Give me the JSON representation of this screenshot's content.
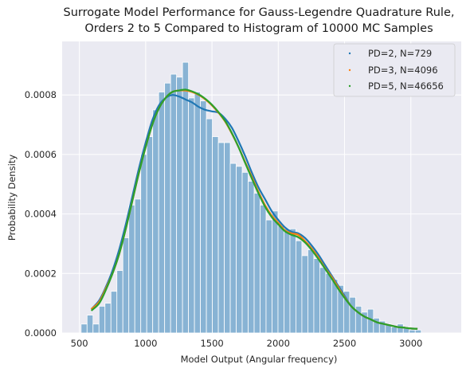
{
  "chart_data": {
    "type": "bar",
    "title_line1": "Surrogate Model Performance for Gauss-Legendre Quadrature Rule,",
    "title_line2": "Orders 2 to 5 Compared to Histogram of 10000 MC Samples",
    "xlabel": "Model Output (Angular frequency)",
    "ylabel": "Probability Density",
    "xlim": [
      370,
      3380
    ],
    "ylim": [
      0,
      0.00098
    ],
    "xticks": [
      500,
      1000,
      1500,
      2000,
      2500,
      3000
    ],
    "xtick_labels": [
      "500",
      "1000",
      "1500",
      "2000",
      "2500",
      "3000"
    ],
    "yticks": [
      0,
      0.0002,
      0.0004,
      0.0006,
      0.0008
    ],
    "ytick_labels": [
      "0.0000",
      "0.0002",
      "0.0004",
      "0.0006",
      "0.0008"
    ],
    "grid": true,
    "legend_position": "top-right",
    "colors": {
      "background": "#eaeaf2",
      "histogram": "#88b3d4",
      "series": [
        "#1f77b4",
        "#ff7f0e",
        "#2ca02c"
      ]
    },
    "histogram": {
      "bin_start": 513,
      "bin_width": 45,
      "densities": [
        3e-05,
        6e-05,
        3e-05,
        9e-05,
        0.0001,
        0.00014,
        0.00021,
        0.00032,
        0.00043,
        0.00045,
        0.0006,
        0.00066,
        0.00075,
        0.00081,
        0.00084,
        0.00087,
        0.00086,
        0.00091,
        0.00079,
        0.00081,
        0.00078,
        0.00072,
        0.00066,
        0.00064,
        0.00064,
        0.00057,
        0.00056,
        0.00054,
        0.00051,
        0.00047,
        0.00043,
        0.00038,
        0.00041,
        0.00036,
        0.00035,
        0.00035,
        0.00031,
        0.00026,
        0.00028,
        0.00025,
        0.00022,
        0.0002,
        0.00018,
        0.00016,
        0.00014,
        0.00012,
        9e-05,
        7e-05,
        8e-05,
        5e-05,
        4e-05,
        3e-05,
        2e-05,
        3e-05,
        2e-05,
        1e-05,
        1e-05
      ]
    },
    "series": [
      {
        "name": "PD=2, N=729",
        "x": [
          590,
          650,
          700,
          750,
          800,
          850,
          900,
          950,
          1000,
          1050,
          1100,
          1150,
          1200,
          1250,
          1300,
          1350,
          1400,
          1450,
          1500,
          1550,
          1600,
          1650,
          1700,
          1750,
          1800,
          1850,
          1900,
          1950,
          2000,
          2050,
          2100,
          2150,
          2200,
          2250,
          2300,
          2350,
          2400,
          2450,
          2500,
          2550,
          2600,
          2650,
          2700,
          2750,
          2800,
          2850,
          2900,
          2950,
          3000,
          3050
        ],
        "y": [
          8e-05,
          0.00011,
          0.000155,
          0.00021,
          0.00028,
          0.000365,
          0.00046,
          0.000555,
          0.00064,
          0.000715,
          0.000765,
          0.00079,
          0.0008,
          0.000795,
          0.000785,
          0.000775,
          0.00076,
          0.00075,
          0.000745,
          0.00074,
          0.00072,
          0.00069,
          0.000645,
          0.000595,
          0.00054,
          0.00049,
          0.00045,
          0.00041,
          0.00038,
          0.000355,
          0.00034,
          0.000335,
          0.00032,
          0.000295,
          0.000265,
          0.00023,
          0.000195,
          0.00016,
          0.000125,
          9e-05,
          7e-05,
          5.5e-05,
          4.5e-05,
          3.5e-05,
          3e-05,
          2.5e-05,
          2e-05,
          1.8e-05,
          1.5e-05,
          1.4e-05
        ]
      },
      {
        "name": "PD=3, N=4096",
        "x": [
          590,
          650,
          700,
          750,
          800,
          850,
          900,
          950,
          1000,
          1050,
          1100,
          1150,
          1200,
          1250,
          1300,
          1350,
          1400,
          1450,
          1500,
          1550,
          1600,
          1650,
          1700,
          1750,
          1800,
          1850,
          1900,
          1950,
          2000,
          2050,
          2100,
          2150,
          2200,
          2250,
          2300,
          2350,
          2400,
          2450,
          2500,
          2550,
          2600,
          2650,
          2700,
          2750,
          2800,
          2850,
          2900,
          2950,
          3000,
          3050
        ],
        "y": [
          8e-05,
          0.000105,
          0.00015,
          0.0002,
          0.000265,
          0.00035,
          0.000445,
          0.00054,
          0.000625,
          0.0007,
          0.000755,
          0.00079,
          0.00081,
          0.000815,
          0.000815,
          0.00081,
          0.0008,
          0.000785,
          0.000765,
          0.00074,
          0.00071,
          0.00067,
          0.000625,
          0.000575,
          0.000525,
          0.000475,
          0.00043,
          0.000395,
          0.00037,
          0.000345,
          0.000335,
          0.00033,
          0.00031,
          0.000285,
          0.000255,
          0.00022,
          0.00019,
          0.000155,
          0.00012,
          9e-05,
          7e-05,
          5.5e-05,
          4.5e-05,
          3.5e-05,
          3e-05,
          2.5e-05,
          2e-05,
          1.8e-05,
          1.5e-05,
          1.4e-05
        ]
      },
      {
        "name": "PD=5, N=46656",
        "x": [
          590,
          650,
          700,
          750,
          800,
          850,
          900,
          950,
          1000,
          1050,
          1100,
          1150,
          1200,
          1250,
          1300,
          1350,
          1400,
          1450,
          1500,
          1550,
          1600,
          1650,
          1700,
          1750,
          1800,
          1850,
          1900,
          1950,
          2000,
          2050,
          2100,
          2150,
          2200,
          2250,
          2300,
          2350,
          2400,
          2450,
          2500,
          2550,
          2600,
          2650,
          2700,
          2750,
          2800,
          2850,
          2900,
          2950,
          3000,
          3050
        ],
        "y": [
          7.5e-05,
          0.0001,
          0.000145,
          0.0002,
          0.000265,
          0.00035,
          0.000445,
          0.00054,
          0.000625,
          0.0007,
          0.000755,
          0.00079,
          0.00081,
          0.000815,
          0.000818,
          0.000812,
          0.000802,
          0.000787,
          0.000767,
          0.000742,
          0.000712,
          0.000672,
          0.000625,
          0.000572,
          0.00052,
          0.00047,
          0.000425,
          0.00039,
          0.000365,
          0.000342,
          0.00033,
          0.000322,
          0.000305,
          0.00028,
          0.00025,
          0.000218,
          0.000185,
          0.00015,
          0.000118,
          9e-05,
          7e-05,
          5.5e-05,
          4.5e-05,
          3.5e-05,
          3e-05,
          2.5e-05,
          2e-05,
          1.8e-05,
          1.5e-05,
          1.4e-05
        ]
      }
    ]
  }
}
